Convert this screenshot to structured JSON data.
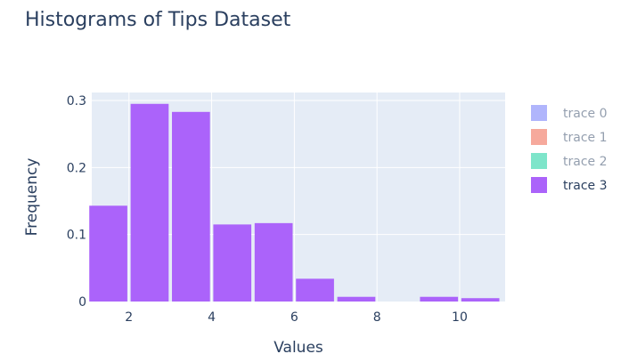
{
  "chart_data": {
    "type": "bar",
    "title": "Histograms of Tips Dataset",
    "xlabel": "Values",
    "ylabel": "Frequency",
    "xlim": [
      1.1,
      11.1
    ],
    "ylim": [
      0,
      0.3
    ],
    "x_ticks": [
      2,
      4,
      6,
      8,
      10
    ],
    "y_ticks": [
      0,
      0.1,
      0.2,
      0.3
    ],
    "y_tick_labels": [
      "0",
      "0.1",
      "0.2",
      "0.3"
    ],
    "grid": true,
    "plot_bgcolor": "#e5ecf6",
    "bin_width": 1,
    "legend_position": "right",
    "series": [
      {
        "name": "trace 0",
        "color": "#636efa",
        "visible": "legendonly",
        "bin_starts": [],
        "values": []
      },
      {
        "name": "trace 1",
        "color": "#ef553b",
        "visible": "legendonly",
        "bin_starts": [],
        "values": []
      },
      {
        "name": "trace 2",
        "color": "#00cc96",
        "visible": "legendonly",
        "bin_starts": [],
        "values": []
      },
      {
        "name": "trace 3",
        "color": "#ab63fa",
        "visible": true,
        "bin_starts": [
          1,
          2,
          3,
          4,
          5,
          6,
          7,
          8,
          9,
          10
        ],
        "values": [
          0.143,
          0.295,
          0.283,
          0.115,
          0.117,
          0.034,
          0.007,
          0,
          0.007,
          0.005
        ]
      }
    ]
  }
}
